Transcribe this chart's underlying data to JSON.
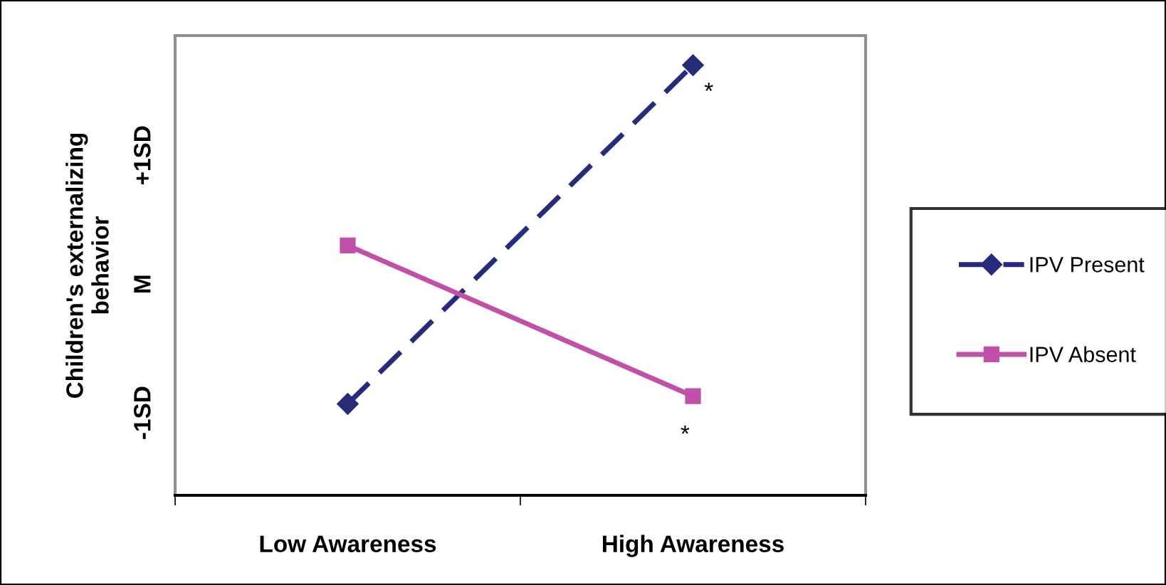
{
  "chart_data": {
    "type": "line",
    "ylabel": "Children's externalizing\nbehavior",
    "categories": [
      "Low Awareness",
      "High Awareness"
    ],
    "series": [
      {
        "name": "IPV Present",
        "color": "#262b7a",
        "values": [
          -0.93,
          1.7
        ],
        "marker": "diamond",
        "line_style": "dashed"
      },
      {
        "name": "IPV Absent",
        "color": "#c050a8",
        "values": [
          0.3,
          -0.87
        ],
        "marker": "square",
        "line_style": "solid"
      }
    ],
    "ylim": [
      -1.64,
      1.93
    ],
    "yticks": [
      {
        "value": -1,
        "label": "-1SD"
      },
      {
        "value": 0,
        "label": "M"
      },
      {
        "value": 1,
        "label": "+1SD"
      }
    ],
    "annotations": [
      {
        "text": "*",
        "x": "High Awareness",
        "y": 1.7
      },
      {
        "text": "*",
        "x": "High Awareness",
        "y": -0.87
      }
    ],
    "grid": false,
    "legend": "right"
  }
}
